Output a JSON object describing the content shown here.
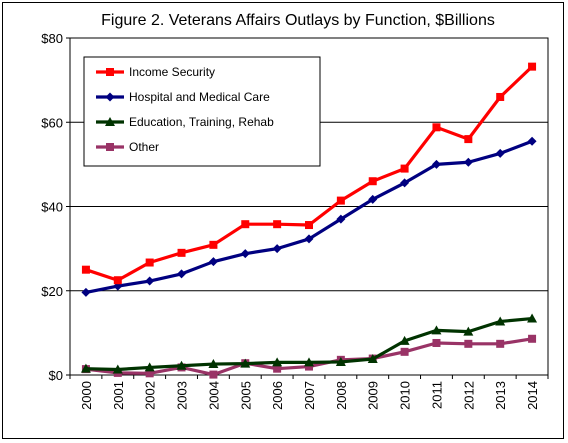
{
  "chart_data": {
    "type": "line",
    "title": "Figure 2. Veterans Affairs Outlays  by Function, $Billions",
    "xlabel": "",
    "ylabel": "",
    "ylim": [
      0,
      80
    ],
    "y_ticks": [
      "$0",
      "$20",
      "$40",
      "$60",
      "$80"
    ],
    "y_tick_values": [
      0,
      20,
      40,
      60,
      80
    ],
    "grid": "horizontal",
    "legend_position": "top-left",
    "categories": [
      "2000",
      "2001",
      "2002",
      "2003",
      "2004",
      "2005",
      "2006",
      "2007",
      "2008",
      "2009",
      "2010",
      "2011",
      "2012",
      "2013",
      "2014"
    ],
    "series": [
      {
        "name": "Income Security",
        "color": "#ff0000",
        "marker": "square",
        "values": [
          25.0,
          22.5,
          26.7,
          29.0,
          30.9,
          35.8,
          35.8,
          35.6,
          41.4,
          46.0,
          49.0,
          58.8,
          56.0,
          66.0,
          73.2
        ]
      },
      {
        "name": "Hospital and Medical Care",
        "color": "#000080",
        "marker": "diamond",
        "values": [
          19.6,
          21.1,
          22.3,
          24.0,
          26.9,
          28.8,
          30.0,
          32.3,
          37.0,
          41.7,
          45.6,
          50.0,
          50.5,
          52.6,
          55.5
        ]
      },
      {
        "name": "Education, Training, Rehab",
        "color": "#003300",
        "marker": "triangle",
        "values": [
          1.5,
          1.3,
          1.8,
          2.2,
          2.6,
          2.7,
          3.0,
          3.0,
          3.1,
          3.8,
          8.1,
          10.6,
          10.3,
          12.7,
          13.4
        ]
      },
      {
        "name": "Other",
        "color": "#993366",
        "marker": "square",
        "values": [
          1.4,
          0.5,
          0.4,
          1.8,
          0.1,
          2.8,
          1.5,
          2.0,
          3.6,
          3.9,
          5.5,
          7.6,
          7.4,
          7.4,
          8.6
        ]
      }
    ]
  }
}
